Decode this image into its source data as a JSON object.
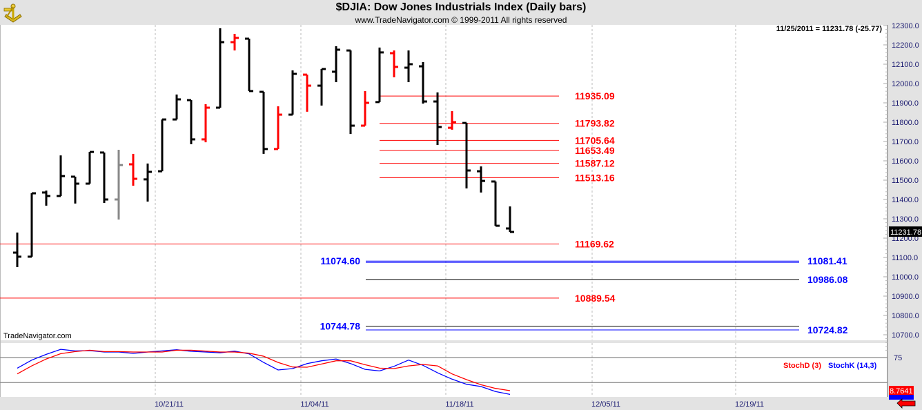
{
  "header": {
    "title": "$DJIA:  Dow Jones Industrials Index  (Daily bars)",
    "subtitle": "www.TradeNavigator.com © 1999-2011 All rights reserved",
    "logo_icon": "sextant-icon"
  },
  "readout": "11/25/2011 = 11231.78 (-25.77)",
  "brand": "TradeNavigator.com",
  "current_price_label": "11231.78",
  "colors": {
    "up": "#000000",
    "down": "#ff0000",
    "neutral": "#888888",
    "blue": "#0000ff",
    "axis_text": "#1a1a70"
  },
  "chart_data": {
    "type": "bar",
    "subtype": "ohlc",
    "title": "$DJIA:  Dow Jones Industrials Index  (Daily bars)",
    "ylim": [
      10650,
      12320
    ],
    "y_ticks": [
      "12300.0",
      "12200.0",
      "12100.0",
      "12000.0",
      "11900.0",
      "11800.0",
      "11700.0",
      "11600.0",
      "11500.0",
      "11400.0",
      "11300.0",
      "11200.0",
      "11100.0",
      "11000.0",
      "10900.0",
      "10800.0",
      "10700.0"
    ],
    "x_ticks": [
      "10/21/11",
      "11/04/11",
      "11/18/11",
      "12/05/11",
      "12/19/11"
    ],
    "bars": [
      {
        "o": 11125,
        "h": 11229,
        "l": 11050,
        "c": 11104,
        "color": "up"
      },
      {
        "o": 11104,
        "h": 11432,
        "l": 11104,
        "c": 11432,
        "color": "up"
      },
      {
        "o": 11436,
        "h": 11446,
        "l": 11368,
        "c": 11418,
        "color": "up"
      },
      {
        "o": 11418,
        "h": 11628,
        "l": 11418,
        "c": 11521,
        "color": "up"
      },
      {
        "o": 11518,
        "h": 11518,
        "l": 11379,
        "c": 11482,
        "color": "up"
      },
      {
        "o": 11482,
        "h": 11646,
        "l": 11482,
        "c": 11646,
        "color": "up"
      },
      {
        "o": 11643,
        "h": 11643,
        "l": 11382,
        "c": 11400,
        "color": "up"
      },
      {
        "o": 11400,
        "h": 11657,
        "l": 11296,
        "c": 11578,
        "color": "neutral"
      },
      {
        "o": 11582,
        "h": 11636,
        "l": 11471,
        "c": 11507,
        "color": "down"
      },
      {
        "o": 11504,
        "h": 11586,
        "l": 11389,
        "c": 11543,
        "color": "up"
      },
      {
        "o": 11546,
        "h": 11814,
        "l": 11546,
        "c": 11814,
        "color": "up"
      },
      {
        "o": 11814,
        "h": 11943,
        "l": 11814,
        "c": 11918,
        "color": "up"
      },
      {
        "o": 11914,
        "h": 11914,
        "l": 11686,
        "c": 11711,
        "color": "up"
      },
      {
        "o": 11711,
        "h": 11893,
        "l": 11696,
        "c": 11875,
        "color": "down"
      },
      {
        "o": 11875,
        "h": 12286,
        "l": 11875,
        "c": 12214,
        "color": "up"
      },
      {
        "o": 12214,
        "h": 12257,
        "l": 12171,
        "c": 12236,
        "color": "down"
      },
      {
        "o": 12232,
        "h": 12232,
        "l": 11961,
        "c": 11961,
        "color": "up"
      },
      {
        "o": 11957,
        "h": 11957,
        "l": 11636,
        "c": 11661,
        "color": "up"
      },
      {
        "o": 11661,
        "h": 11882,
        "l": 11661,
        "c": 11839,
        "color": "down"
      },
      {
        "o": 11839,
        "h": 12068,
        "l": 11839,
        "c": 12050,
        "color": "up"
      },
      {
        "o": 12046,
        "h": 12046,
        "l": 11854,
        "c": 11989,
        "color": "down"
      },
      {
        "o": 11989,
        "h": 12075,
        "l": 11886,
        "c": 12075,
        "color": "up"
      },
      {
        "o": 12061,
        "h": 12193,
        "l": 12007,
        "c": 12175,
        "color": "up"
      },
      {
        "o": 12171,
        "h": 12171,
        "l": 11739,
        "c": 11782,
        "color": "up"
      },
      {
        "o": 11782,
        "h": 11961,
        "l": 11782,
        "c": 11900,
        "color": "down"
      },
      {
        "o": 11904,
        "h": 12186,
        "l": 11904,
        "c": 12161,
        "color": "up"
      },
      {
        "o": 12157,
        "h": 12171,
        "l": 12032,
        "c": 12086,
        "color": "down"
      },
      {
        "o": 12082,
        "h": 12171,
        "l": 12007,
        "c": 12100,
        "color": "up"
      },
      {
        "o": 12089,
        "h": 12111,
        "l": 11896,
        "c": 11907,
        "color": "up"
      },
      {
        "o": 11907,
        "h": 11954,
        "l": 11682,
        "c": 11775,
        "color": "up"
      },
      {
        "o": 11771,
        "h": 11857,
        "l": 11761,
        "c": 11800,
        "color": "down"
      },
      {
        "o": 11796,
        "h": 11796,
        "l": 11457,
        "c": 11550,
        "color": "up"
      },
      {
        "o": 11546,
        "h": 11571,
        "l": 11436,
        "c": 11496,
        "color": "up"
      },
      {
        "o": 11493,
        "h": 11493,
        "l": 11264,
        "c": 11264,
        "color": "up"
      },
      {
        "o": 11250,
        "h": 11364,
        "l": 11232,
        "c": 11232,
        "color": "up"
      }
    ],
    "red_levels_short": [
      {
        "value": 11935.09,
        "label": "11935.09"
      },
      {
        "value": 11793.82,
        "label": "11793.82"
      },
      {
        "value": 11705.64,
        "label": "11705.64"
      },
      {
        "value": 11653.49,
        "label": "11653.49"
      },
      {
        "value": 11587.12,
        "label": "11587.12"
      },
      {
        "value": 11513.16,
        "label": "11513.16"
      }
    ],
    "red_levels_wide": [
      {
        "value": 11169.62,
        "label": "11169.62"
      },
      {
        "value": 10889.54,
        "label": "10889.54"
      }
    ],
    "extension_levels": [
      {
        "value": 11081.41,
        "color": "blue",
        "left_label": "11074.60",
        "right_label": "11081.41"
      },
      {
        "value": 11074.6,
        "color": "blue",
        "left_label": null,
        "right_label": null
      },
      {
        "value": 10986.08,
        "color": "up",
        "left_label": null,
        "right_label": "10986.08"
      },
      {
        "value": 10744.78,
        "color": "up",
        "left_label": "10744.78",
        "right_label": null
      },
      {
        "value": 10724.82,
        "color": "blue",
        "left_label": null,
        "right_label": "10724.82"
      }
    ],
    "stochastic": {
      "d_label": "StochD (3)",
      "k_label": "StochK (14,3)",
      "level_label": "75",
      "levels": [
        75,
        25
      ],
      "ylim": [
        0,
        100
      ],
      "d_last_label": "8.7641",
      "K": [
        53.8,
        69.9,
        81.4,
        91.5,
        88.3,
        88.8,
        86,
        86,
        83.3,
        86,
        88.3,
        90.6,
        87.4,
        86,
        84.6,
        87.9,
        82.3,
        65.3,
        50.2,
        52.9,
        63,
        68.5,
        72.2,
        63,
        51.5,
        48.3,
        57.5,
        69.9,
        59.4,
        44.6,
        31.8,
        21.7,
        17.1,
        7,
        1.4
      ],
      "D": [
        42.3,
        58.4,
        72.2,
        82.8,
        86.9,
        89.7,
        86.9,
        86.9,
        86,
        86,
        86,
        89.7,
        89.7,
        87.9,
        86,
        86,
        83.7,
        77.7,
        65.3,
        56.1,
        55.7,
        62.1,
        68.5,
        68.5,
        60.7,
        53.8,
        52.9,
        58.4,
        61.2,
        58.4,
        42.3,
        30.9,
        20.7,
        13.4,
        8.76
      ]
    }
  }
}
